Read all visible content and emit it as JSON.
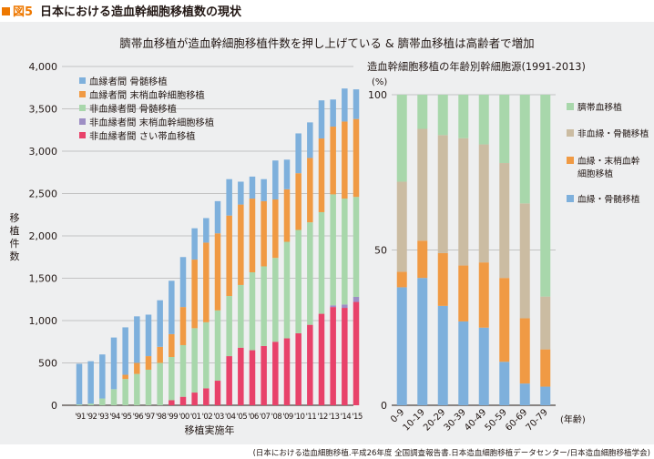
{
  "header": {
    "figure_number": "図5",
    "title": "日本における造血幹細胞移植数の現状"
  },
  "main_title": "臍帯血移植が造血幹細胞移植件数を押し上げている & 臍帯血移植は高齢者で増加",
  "source": "(日本における造血細胞移植.平成26年度 全国調査報告書.日本造血細胞移植データセンター/日本造血細胞移植学会)",
  "colors": {
    "related_bm": "#7eb0dc",
    "related_pb": "#f09a44",
    "unrelated_bm": "#a8d7ab",
    "unrelated_pb": "#9d8ec4",
    "unrelated_cb": "#e8426a",
    "right_cord": "#a8d7ab",
    "right_unrelated_bm": "#cbbca2",
    "right_related_pb": "#f09a44",
    "right_related_bm": "#7eb0dc"
  },
  "chart_data": [
    {
      "type": "bar",
      "stacked": true,
      "title": "",
      "xlabel": "移植実施年",
      "ylabel": "移植件数",
      "ylim": [
        0,
        4000
      ],
      "yticks": [
        "0",
        "500",
        "1,000",
        "1,500",
        "2,000",
        "2,500",
        "3,000",
        "3,500",
        "4,000"
      ],
      "categories": [
        "'91",
        "'92",
        "'93",
        "'94",
        "'95",
        "'96",
        "'97",
        "'98",
        "'99",
        "'00",
        "'01",
        "'02",
        "'03",
        "'04",
        "'05",
        "'06",
        "'07",
        "'08",
        "'09",
        "'10",
        "'11",
        "'12",
        "'13",
        "'14",
        "'15"
      ],
      "legend_position": "top-left",
      "series": [
        {
          "name": "非血縁者間 さい帯血移植",
          "color_key": "unrelated_cb",
          "values": [
            0,
            0,
            0,
            0,
            0,
            0,
            0,
            0,
            60,
            100,
            150,
            200,
            290,
            580,
            680,
            650,
            700,
            750,
            790,
            850,
            950,
            1080,
            1160,
            1150,
            1220
          ]
        },
        {
          "name": "非血縁者間 末梢血幹細胞移植",
          "color_key": "unrelated_pb",
          "values": [
            0,
            0,
            0,
            0,
            0,
            0,
            0,
            0,
            0,
            0,
            0,
            0,
            0,
            0,
            0,
            0,
            0,
            0,
            0,
            0,
            0,
            0,
            20,
            40,
            60
          ]
        },
        {
          "name": "非血縁者間 骨髄移植",
          "color_key": "unrelated_bm",
          "values": [
            10,
            20,
            80,
            190,
            310,
            370,
            420,
            500,
            510,
            610,
            760,
            780,
            830,
            710,
            740,
            920,
            940,
            990,
            1140,
            1220,
            1210,
            1200,
            1310,
            1250,
            1180
          ]
        },
        {
          "name": "血縁者間 末梢血幹細胞移植",
          "color_key": "related_pb",
          "values": [
            0,
            0,
            0,
            0,
            50,
            130,
            160,
            190,
            270,
            450,
            810,
            940,
            910,
            950,
            950,
            870,
            770,
            690,
            620,
            670,
            760,
            870,
            800,
            910,
            920
          ]
        },
        {
          "name": "血縁者間 骨髄移植",
          "color_key": "related_bm",
          "values": [
            480,
            500,
            520,
            610,
            560,
            550,
            490,
            550,
            630,
            590,
            370,
            290,
            380,
            430,
            270,
            260,
            260,
            460,
            350,
            470,
            420,
            450,
            320,
            390,
            350
          ]
        }
      ]
    },
    {
      "type": "bar",
      "stacked": true,
      "title": "造血幹細胞移植の年齢別幹細胞源(1991-2013)",
      "ylabel": "(%)",
      "xlabel": "(年齢)",
      "ylim": [
        0,
        100
      ],
      "yticks": [
        "0",
        "50",
        "100"
      ],
      "categories": [
        "0-9",
        "10-19",
        "20-29",
        "30-39",
        "40-49",
        "50-59",
        "60-69",
        "70-79"
      ],
      "legend_position": "right",
      "series": [
        {
          "name": "血縁・骨髄移植",
          "color_key": "right_related_bm",
          "values": [
            38,
            41,
            32,
            27,
            25,
            14,
            7,
            6
          ]
        },
        {
          "name": "血縁・末梢血幹細胞移植",
          "legend_lines": [
            "血縁・末梢血幹",
            "細胞移植"
          ],
          "color_key": "right_related_pb",
          "values": [
            5,
            12,
            17,
            18,
            21,
            27,
            21,
            12
          ]
        },
        {
          "name": "非血縁・骨髄移植",
          "color_key": "right_unrelated_bm",
          "values": [
            29,
            36,
            38,
            41,
            38,
            37,
            37,
            17
          ]
        },
        {
          "name": "臍帯血移植",
          "color_key": "right_cord",
          "values": [
            28,
            11,
            13,
            14,
            16,
            22,
            35,
            65
          ]
        }
      ]
    }
  ]
}
